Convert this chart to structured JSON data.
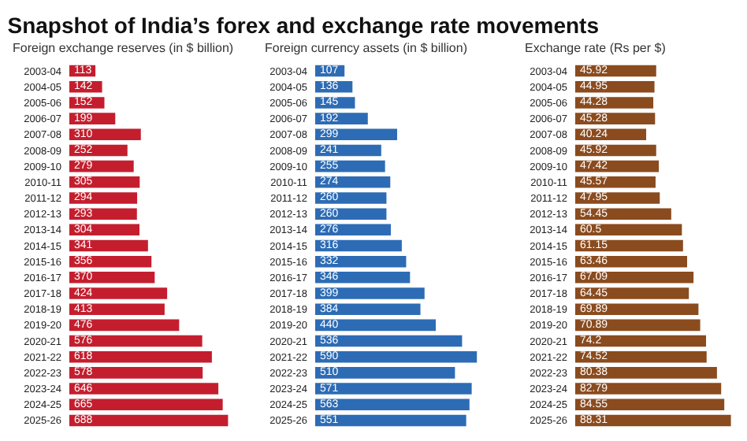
{
  "chart_data": [
    {
      "type": "bar",
      "orientation": "horizontal",
      "title": "Snapshot of India’s forex and exchange rate movements",
      "subtitle": "Foreign exchange reserves (in $ billion)",
      "data_labels": true,
      "color": "#c41e2e",
      "categories": [
        "2003-04",
        "2004-05",
        "2005-06",
        "2006-07",
        "2007-08",
        "2008-09",
        "2009-10",
        "2010-11",
        "2011-12",
        "2012-13",
        "2013-14",
        "2014-15",
        "2015-16",
        "2016-17",
        "2017-18",
        "2018-19",
        "2019-20",
        "2020-21",
        "2021-22",
        "2022-23",
        "2023-24",
        "2024-25",
        "2025-26"
      ],
      "values": [
        113,
        142,
        152,
        199,
        310,
        252,
        279,
        305,
        294,
        293,
        304,
        341,
        356,
        370,
        424,
        413,
        476,
        576,
        618,
        578,
        646,
        665,
        688
      ]
    },
    {
      "type": "bar",
      "orientation": "horizontal",
      "subtitle": "Foreign currency assets (in $ billion)",
      "data_labels": true,
      "color": "#2d6cb5",
      "categories": [
        "2003-04",
        "2004-05",
        "2005-06",
        "2006-07",
        "2007-08",
        "2008-09",
        "2009-10",
        "2010-11",
        "2011-12",
        "2012-13",
        "2013-14",
        "2014-15",
        "2015-16",
        "2016-17",
        "2017-18",
        "2018-19",
        "2019-20",
        "2020-21",
        "2021-22",
        "2022-23",
        "2023-24",
        "2024-25",
        "2025-26"
      ],
      "values": [
        107,
        136,
        145,
        192,
        299,
        241,
        255,
        274,
        260,
        260,
        276,
        316,
        332,
        346,
        399,
        384,
        440,
        536,
        590,
        510,
        571,
        563,
        551
      ]
    },
    {
      "type": "bar",
      "orientation": "horizontal",
      "subtitle": "Exchange rate (Rs per $)",
      "data_labels": true,
      "color": "#8a4b1e",
      "categories": [
        "2003-04",
        "2004-05",
        "2005-06",
        "2006-07",
        "2007-08",
        "2008-09",
        "2009-10",
        "2010-11",
        "2011-12",
        "2012-13",
        "2013-14",
        "2014-15",
        "2015-16",
        "2016-17",
        "2017-18",
        "2018-19",
        "2019-20",
        "2020-21",
        "2021-22",
        "2022-23",
        "2023-24",
        "2024-25",
        "2025-26"
      ],
      "values": [
        45.92,
        44.95,
        44.28,
        45.28,
        40.24,
        45.92,
        47.42,
        45.57,
        47.95,
        54.45,
        60.5,
        61.15,
        63.46,
        67.09,
        64.45,
        69.89,
        70.89,
        74.2,
        74.52,
        80.38,
        82.79,
        84.55,
        88.31
      ]
    }
  ]
}
